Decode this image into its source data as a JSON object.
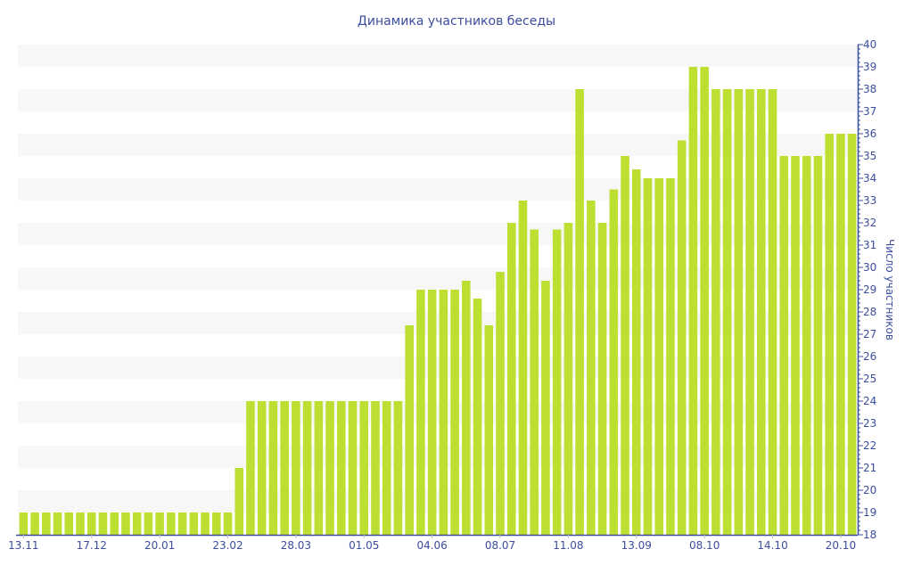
{
  "chart_data": {
    "type": "bar",
    "title": "Динамика участников беседы",
    "xlabel": "",
    "ylabel": "Число участников",
    "ylim": [
      18,
      40
    ],
    "y_axis_position": "right",
    "grid": "alternating horizontal bands",
    "legend": "none",
    "colors": {
      "bar": "#bcdf31",
      "axis": "#3c4d9e",
      "band": "#f7f7f7",
      "title": "#3c4d9e"
    },
    "y_ticks": [
      18,
      19,
      20,
      21,
      22,
      23,
      24,
      25,
      26,
      27,
      28,
      29,
      30,
      31,
      32,
      33,
      34,
      35,
      36,
      37,
      38,
      39,
      40
    ],
    "x_ticks": [
      {
        "index": 0,
        "label": "13.11"
      },
      {
        "index": 6,
        "label": "17.12"
      },
      {
        "index": 12,
        "label": "20.01"
      },
      {
        "index": 18,
        "label": "23.02"
      },
      {
        "index": 24,
        "label": "28.03"
      },
      {
        "index": 30,
        "label": "01.05"
      },
      {
        "index": 36,
        "label": "04.06"
      },
      {
        "index": 42,
        "label": "08.07"
      },
      {
        "index": 48,
        "label": "11.08"
      },
      {
        "index": 54,
        "label": "13.09"
      },
      {
        "index": 60,
        "label": "08.10"
      },
      {
        "index": 66,
        "label": "14.10"
      },
      {
        "index": 72,
        "label": "20.10"
      }
    ],
    "values": [
      19,
      19,
      19,
      19,
      19,
      19,
      19,
      19,
      19,
      19,
      19,
      19,
      19,
      19,
      19,
      19,
      19,
      19,
      19,
      21,
      24,
      24,
      24,
      24,
      24,
      24,
      24,
      24,
      24,
      24,
      24,
      24,
      24,
      24,
      27.4,
      29,
      29,
      29,
      29,
      29.4,
      28.6,
      27.4,
      29.8,
      32,
      33,
      31.7,
      29.4,
      31.7,
      32,
      38,
      33,
      32,
      33.5,
      35,
      34.4,
      34,
      34,
      34,
      35.7,
      39,
      39,
      38,
      38,
      38,
      38,
      38,
      38,
      35,
      35,
      35,
      35,
      36,
      36,
      36
    ]
  }
}
